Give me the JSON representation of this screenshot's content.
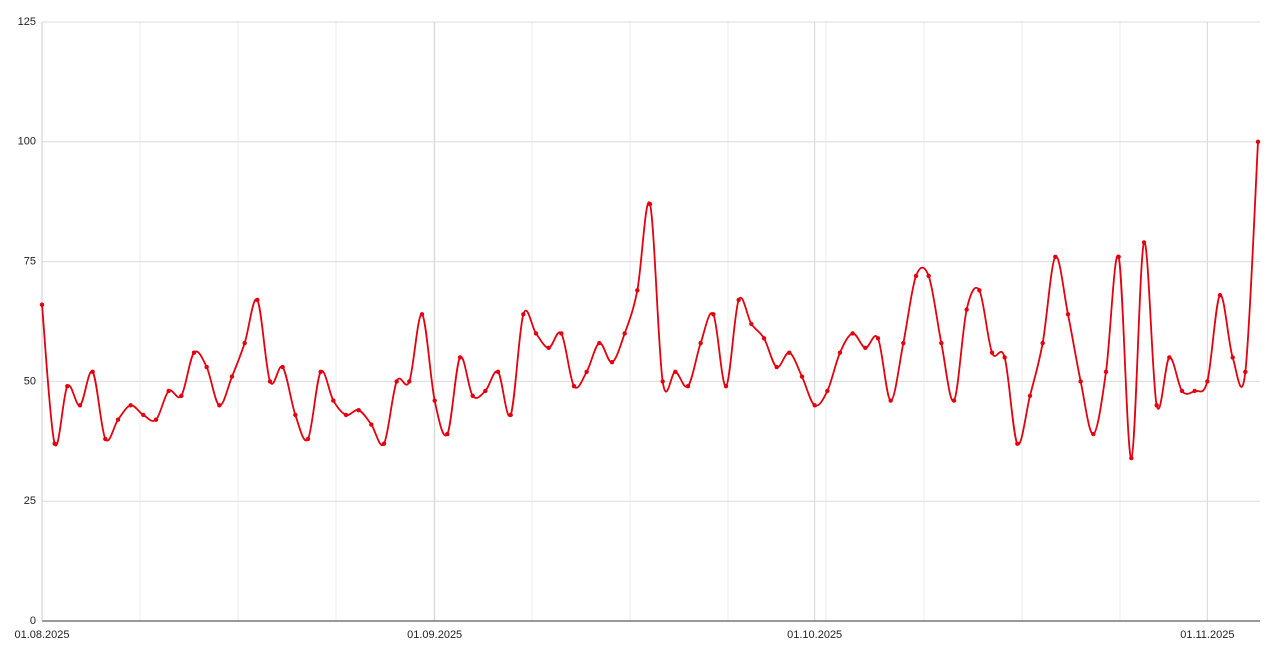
{
  "chart_data": {
    "type": "line",
    "x": [
      "01.08.2025",
      "02.08.2025",
      "03.08.2025",
      "04.08.2025",
      "05.08.2025",
      "06.08.2025",
      "07.08.2025",
      "08.08.2025",
      "09.08.2025",
      "10.08.2025",
      "11.08.2025",
      "12.08.2025",
      "13.08.2025",
      "14.08.2025",
      "15.08.2025",
      "16.08.2025",
      "17.08.2025",
      "18.08.2025",
      "19.08.2025",
      "20.08.2025",
      "21.08.2025",
      "22.08.2025",
      "23.08.2025",
      "24.08.2025",
      "25.08.2025",
      "26.08.2025",
      "27.08.2025",
      "28.08.2025",
      "29.08.2025",
      "30.08.2025",
      "31.08.2025",
      "01.09.2025",
      "02.09.2025",
      "03.09.2025",
      "04.09.2025",
      "05.09.2025",
      "06.09.2025",
      "07.09.2025",
      "08.09.2025",
      "09.09.2025",
      "10.09.2025",
      "11.09.2025",
      "12.09.2025",
      "13.09.2025",
      "14.09.2025",
      "15.09.2025",
      "16.09.2025",
      "17.09.2025",
      "18.09.2025",
      "19.09.2025",
      "20.09.2025",
      "21.09.2025",
      "22.09.2025",
      "23.09.2025",
      "24.09.2025",
      "25.09.2025",
      "26.09.2025",
      "27.09.2025",
      "28.09.2025",
      "29.09.2025",
      "30.09.2025",
      "01.10.2025",
      "02.10.2025",
      "03.10.2025",
      "04.10.2025",
      "05.10.2025",
      "06.10.2025",
      "07.10.2025",
      "08.10.2025",
      "09.10.2025",
      "10.10.2025",
      "11.10.2025",
      "12.10.2025",
      "13.10.2025",
      "14.10.2025",
      "15.10.2025",
      "16.10.2025",
      "17.10.2025",
      "18.10.2025",
      "19.10.2025",
      "20.10.2025",
      "21.10.2025",
      "22.10.2025",
      "23.10.2025",
      "24.10.2025",
      "25.10.2025",
      "26.10.2025",
      "27.10.2025",
      "28.10.2025",
      "29.10.2025",
      "30.10.2025",
      "31.10.2025",
      "01.11.2025",
      "02.11.2025",
      "03.11.2025",
      "04.11.2025",
      "05.11.2025"
    ],
    "series": [
      {
        "color": "#e3000f",
        "values": [
          66,
          37,
          49,
          45,
          52,
          38,
          42,
          45,
          43,
          42,
          48,
          47,
          56,
          53,
          45,
          51,
          58,
          67,
          50,
          53,
          43,
          38,
          52,
          46,
          43,
          44,
          41,
          37,
          50,
          50,
          64,
          46,
          39,
          55,
          47,
          48,
          52,
          43,
          64,
          60,
          57,
          60,
          49,
          52,
          58,
          54,
          60,
          69,
          87,
          50,
          52,
          49,
          58,
          64,
          49,
          67,
          62,
          59,
          53,
          56,
          51,
          45,
          48,
          56,
          60,
          57,
          59,
          46,
          58,
          72,
          72,
          58,
          46,
          65,
          69,
          56,
          55,
          37,
          47,
          58,
          76,
          64,
          50,
          39,
          52,
          76,
          34,
          79,
          45,
          55,
          48,
          48,
          50,
          68,
          55,
          52,
          100
        ]
      }
    ],
    "xticks": [
      "01.08.2025",
      "01.09.2025",
      "01.10.2025",
      "01.11.2025"
    ],
    "ylim": [
      0,
      125
    ],
    "yticks": [
      0,
      25,
      50,
      75,
      100,
      125
    ],
    "grid": true
  }
}
